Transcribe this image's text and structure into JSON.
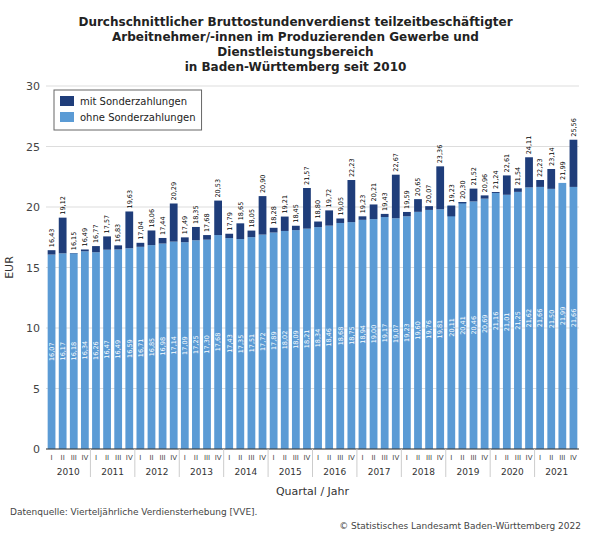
{
  "chart_data": {
    "type": "bar",
    "title": "Durchschnittlicher Bruttostundenverdienst teilzeitbeschäftigter\nArbeitnehmer/-innen im Produzierenden Gewerbe und\nDienstleistungsbereich\nin Baden-Württemberg seit 2010",
    "x_label": "Quartal / Jahr",
    "y_label": "EUR",
    "footnotes": [
      "Datenquelle: Vierteljährliche Verdiensterhebung [VVE].",
      "© Statistisches Landesamt Baden-Württemberg 2022"
    ],
    "categories": [
      "I",
      "II",
      "III",
      "IV",
      "I",
      "II",
      "III",
      "IV",
      "I",
      "II",
      "III",
      "IV",
      "I",
      "II",
      "III",
      "IV",
      "I",
      "II",
      "III",
      "IV",
      "I",
      "II",
      "III",
      "IV",
      "I",
      "II",
      "III",
      "IV",
      "I",
      "II",
      "III",
      "IV",
      "I",
      "II",
      "III",
      "IV",
      "I",
      "II",
      "III",
      "IV",
      "I",
      "II",
      "III",
      "IV",
      "I",
      "II",
      "III",
      "IV"
    ],
    "years": [
      2010,
      2010,
      2010,
      2010,
      2011,
      2011,
      2011,
      2011,
      2012,
      2012,
      2012,
      2012,
      2013,
      2013,
      2013,
      2013,
      2014,
      2014,
      2014,
      2014,
      2015,
      2015,
      2015,
      2015,
      2016,
      2016,
      2016,
      2016,
      2017,
      2017,
      2017,
      2017,
      2018,
      2018,
      2018,
      2018,
      2019,
      2019,
      2019,
      2019,
      2020,
      2020,
      2020,
      2020,
      2021,
      2021,
      2021,
      2021
    ],
    "series": [
      {
        "name": "mit Sonderzahlungen",
        "color": "#1f3d7a",
        "values": [
          16.43,
          19.12,
          16.15,
          16.49,
          16.77,
          17.57,
          16.83,
          19.63,
          17.04,
          18.06,
          17.44,
          20.29,
          17.49,
          18.35,
          17.68,
          20.53,
          17.79,
          18.65,
          18.05,
          20.9,
          18.28,
          19.21,
          18.45,
          21.57,
          18.8,
          19.72,
          19.05,
          22.23,
          19.23,
          20.21,
          19.43,
          22.67,
          19.59,
          20.65,
          20.07,
          23.36,
          19.23,
          20.3,
          21.52,
          20.96,
          21.24,
          22.61,
          21.54,
          24.11,
          22.23,
          23.14,
          21.99,
          25.56
        ],
        "value_labels": [
          "16,43",
          "19,12",
          "16,15",
          "16,49",
          "16,77",
          "17,57",
          "16,83",
          "19,63",
          "17,04",
          "18,06",
          "17,44",
          "20,29",
          "17,49",
          "18,35",
          "17,68",
          "20,53",
          "17,79",
          "18,65",
          "18,05",
          "20,90",
          "18,28",
          "19,21",
          "18,45",
          "21,57",
          "18,80",
          "19,72",
          "19,05",
          "22,23",
          "19,23",
          "20,21",
          "19,43",
          "22,67",
          "19,59",
          "20,65",
          "20,07",
          "23,36",
          "19,23",
          "20,30",
          "21,52",
          "20,96",
          "21,24",
          "22,61",
          "21,54",
          "24,11",
          "22,23",
          "23,14",
          "21,99",
          "25,56"
        ]
      },
      {
        "name": "ohne Sonderzahlungen",
        "color": "#5b9bd5",
        "values": [
          16.07,
          16.17,
          16.18,
          16.34,
          16.26,
          16.47,
          16.49,
          16.59,
          16.71,
          16.85,
          16.98,
          17.14,
          17.09,
          17.25,
          17.3,
          17.68,
          17.43,
          17.35,
          17.51,
          17.72,
          17.89,
          18.02,
          18.09,
          18.21,
          18.34,
          18.46,
          18.68,
          18.75,
          18.94,
          19.0,
          19.17,
          19.07,
          19.23,
          19.6,
          19.76,
          19.81,
          20.11,
          20.41,
          20.46,
          20.69,
          21.16,
          21.01,
          21.25,
          21.62,
          21.66,
          21.5,
          21.99,
          21.66
        ],
        "value_labels": [
          "16,07",
          "16,17",
          "16,18",
          "16,34",
          "16,26",
          "16,47",
          "16,49",
          "16,59",
          "16,71",
          "16,85",
          "16,98",
          "17,14",
          "17,09",
          "17,25",
          "17,30",
          "17,68",
          "17,43",
          "17,35",
          "17,51",
          "17,72",
          "17,89",
          "18,02",
          "18,09",
          "18,21",
          "18,34",
          "18,46",
          "18,68",
          "18,75",
          "18,94",
          "19,00",
          "19,17",
          "19,07",
          "19,23",
          "19,60",
          "19,76",
          "19,81",
          "20,11",
          "20,41",
          "20,46",
          "20,69",
          "21,16",
          "21,01",
          "21,25",
          "21,62",
          "21,66",
          "21,50",
          "21,99",
          "21,66"
        ]
      }
    ],
    "ylim": [
      0,
      30
    ],
    "yticks": [
      0,
      5,
      10,
      15,
      20,
      25,
      30
    ],
    "grid": true,
    "legend": "upper left",
    "data_labels": true
  }
}
